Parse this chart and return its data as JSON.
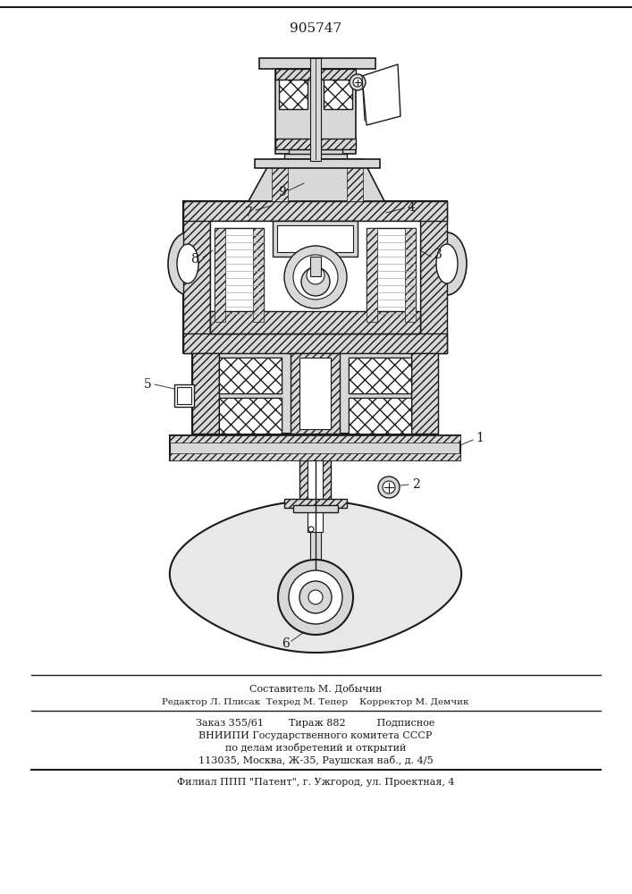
{
  "patent_number": "905747",
  "background_color": "#ffffff",
  "text_color": "#1a1a1a",
  "line_color": "#1a1a1a",
  "footer_line1": "Составитель М. Добычин",
  "footer_line2": "Редактор Л. Плисак  Техред М. Тепер    Корректор М. Демчик",
  "footer_line3": "Заказ 355/61        Тираж 882          Подписное",
  "footer_line4": "ВНИИПИ Государственного комитета СССР",
  "footer_line5": "по делам изобретений и открытий",
  "footer_line6": "113035, Москва, Ж-35, Раушская наб., д. 4/5",
  "footer_line7": "Филиал ППП \"Патент\", г. Ужгород, ул. Проектная, 4",
  "fig_width": 7.07,
  "fig_height": 10.0,
  "dpi": 100
}
